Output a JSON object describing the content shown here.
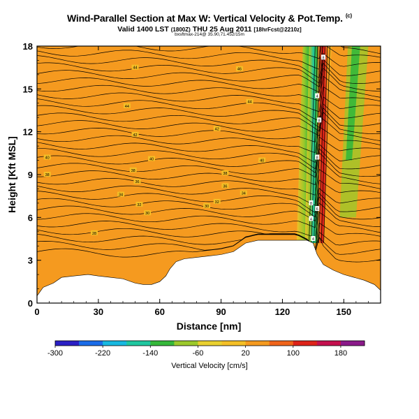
{
  "header": {
    "title": "Wind-Parallel Section at Max W: Vertical Velocity & Pot.Temp.",
    "title_mark": "(c)",
    "valid_label": "Valid 1400 LST",
    "valid_utc": "(1800Z)",
    "valid_date": "THU 25 Aug 2011",
    "forecast": "[18hrFcst@2210z]",
    "run_info": "bxsftmax-214@ 35.90,71.452/15m"
  },
  "chart_data": {
    "type": "heatmap",
    "xlabel": "Distance [nm]",
    "ylabel": "Height [Kft MSL]",
    "xlim": [
      0,
      168
    ],
    "ylim": [
      0,
      18
    ],
    "x_ticks": [
      0,
      30,
      60,
      90,
      120,
      150
    ],
    "y_ticks": [
      0,
      3,
      6,
      9,
      12,
      15,
      18
    ],
    "terrain": {
      "x": [
        0,
        3,
        8,
        12,
        18,
        25,
        30,
        36,
        42,
        48,
        52,
        56,
        60,
        63,
        65,
        68,
        72,
        78,
        84,
        90,
        96,
        102,
        108,
        114,
        120,
        126,
        132,
        135,
        137,
        140,
        145,
        150,
        155,
        160,
        165,
        168
      ],
      "y": [
        0.5,
        1.1,
        1.4,
        1.8,
        1.9,
        2.0,
        1.9,
        1.8,
        1.7,
        1.4,
        1.3,
        1.3,
        1.5,
        1.9,
        2.4,
        2.9,
        3.1,
        3.2,
        3.3,
        3.4,
        3.6,
        4.2,
        4.4,
        4.4,
        4.4,
        4.4,
        4.4,
        4.2,
        3.4,
        2.7,
        2.3,
        2.0,
        1.8,
        1.6,
        1.3,
        0.9
      ]
    },
    "colorbar": {
      "label": "Vertical Velocity [cm/s]",
      "min": -300,
      "max": 220,
      "ticks": [
        -300,
        -220,
        -140,
        -60,
        20,
        100,
        180
      ],
      "colors": [
        "#2a1fc4",
        "#1a6ce8",
        "#17b8e0",
        "#1fc7a0",
        "#35b83a",
        "#9cc92b",
        "#e9d02f",
        "#f4bf26",
        "#f59a1f",
        "#f0641a",
        "#de2319",
        "#c4104e",
        "#8b1a8a"
      ]
    },
    "background_velocity": 20,
    "updraft": {
      "x_bottom": 136,
      "x_top": 139,
      "peak_velocity": 180,
      "downdraft_x": 131,
      "downdraft_velocity": -140
    },
    "theta_labels": [
      {
        "x": 48,
        "y": 16.5,
        "value": "44"
      },
      {
        "x": 44,
        "y": 13.8,
        "value": "44"
      },
      {
        "x": 48,
        "y": 11.8,
        "value": "42"
      },
      {
        "x": 5,
        "y": 10.2,
        "value": "40"
      },
      {
        "x": 56,
        "y": 10.1,
        "value": "40"
      },
      {
        "x": 5,
        "y": 9.0,
        "value": "38"
      },
      {
        "x": 47,
        "y": 9.3,
        "value": "38"
      },
      {
        "x": 49,
        "y": 8.5,
        "value": "36"
      },
      {
        "x": 41,
        "y": 7.6,
        "value": "34"
      },
      {
        "x": 50,
        "y": 6.9,
        "value": "32"
      },
      {
        "x": 54,
        "y": 6.3,
        "value": "30"
      },
      {
        "x": 28,
        "y": 4.9,
        "value": "28"
      },
      {
        "x": 99,
        "y": 16.4,
        "value": "46"
      },
      {
        "x": 104,
        "y": 14.1,
        "value": "44"
      },
      {
        "x": 88,
        "y": 12.2,
        "value": "42"
      },
      {
        "x": 110,
        "y": 10.0,
        "value": "40"
      },
      {
        "x": 92,
        "y": 9.1,
        "value": "38"
      },
      {
        "x": 92,
        "y": 8.2,
        "value": "36"
      },
      {
        "x": 101,
        "y": 7.7,
        "value": "34"
      },
      {
        "x": 88,
        "y": 7.1,
        "value": "32"
      },
      {
        "x": 83,
        "y": 6.8,
        "value": "30"
      }
    ],
    "updraft_labels": [
      {
        "x": 140,
        "y": 17.2,
        "value": "8"
      },
      {
        "x": 137,
        "y": 14.5,
        "value": "4"
      },
      {
        "x": 138,
        "y": 12.8,
        "value": "8"
      },
      {
        "x": 137,
        "y": 10.2,
        "value": "8"
      },
      {
        "x": 134,
        "y": 7.0,
        "value": "8"
      },
      {
        "x": 137,
        "y": 6.6,
        "value": "6"
      },
      {
        "x": 134,
        "y": 5.9,
        "value": "4"
      },
      {
        "x": 135,
        "y": 4.5,
        "value": "4"
      }
    ]
  }
}
